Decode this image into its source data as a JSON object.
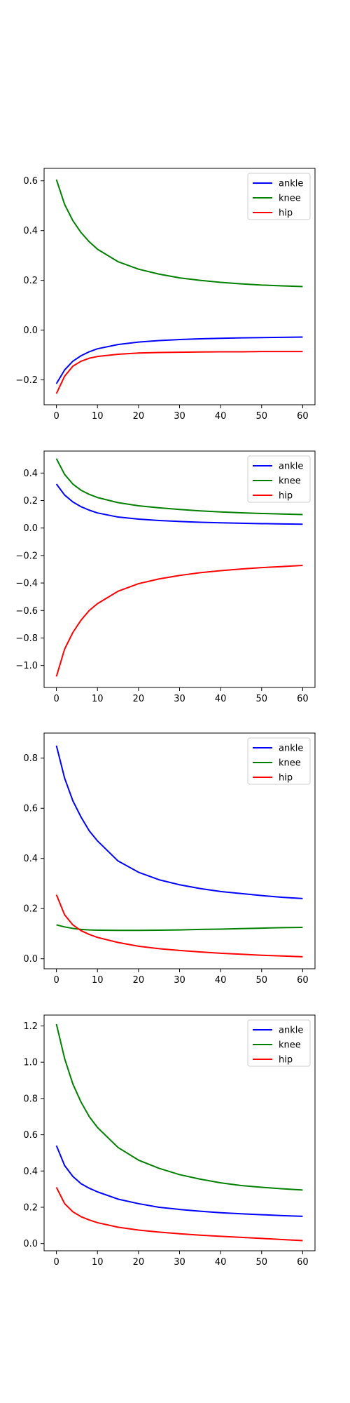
{
  "chart_data": [
    {
      "type": "line",
      "xlim": [
        -3,
        63
      ],
      "ylim": [
        -0.3,
        0.65
      ],
      "xticks": [
        0,
        10,
        20,
        30,
        40,
        50,
        60
      ],
      "yticks": [
        -0.2,
        0.0,
        0.2,
        0.4,
        0.6
      ],
      "xtick_labels": [
        "0",
        "10",
        "20",
        "30",
        "40",
        "50",
        "60"
      ],
      "ytick_labels": [
        "−0.2",
        "0.0",
        "0.2",
        "0.4",
        "0.6"
      ],
      "legend_position": "upper right",
      "grid": false,
      "series": [
        {
          "name": "ankle",
          "color": "#0000ff",
          "x": [
            0,
            2,
            4,
            6,
            8,
            10,
            15,
            20,
            25,
            30,
            35,
            40,
            45,
            50,
            55,
            60
          ],
          "y": [
            -0.215,
            -0.16,
            -0.125,
            -0.103,
            -0.087,
            -0.075,
            -0.058,
            -0.048,
            -0.042,
            -0.038,
            -0.035,
            -0.033,
            -0.031,
            -0.03,
            -0.029,
            -0.028
          ]
        },
        {
          "name": "knee",
          "color": "#008000",
          "x": [
            0,
            2,
            4,
            6,
            8,
            10,
            15,
            20,
            25,
            30,
            35,
            40,
            45,
            50,
            55,
            60
          ],
          "y": [
            0.605,
            0.505,
            0.44,
            0.392,
            0.355,
            0.325,
            0.275,
            0.245,
            0.225,
            0.21,
            0.2,
            0.192,
            0.186,
            0.181,
            0.178,
            0.175
          ]
        },
        {
          "name": "hip",
          "color": "#ff0000",
          "x": [
            0,
            2,
            4,
            6,
            8,
            10,
            15,
            20,
            25,
            30,
            35,
            40,
            45,
            50,
            55,
            60
          ],
          "y": [
            -0.255,
            -0.185,
            -0.145,
            -0.125,
            -0.113,
            -0.106,
            -0.097,
            -0.092,
            -0.09,
            -0.089,
            -0.088,
            -0.087,
            -0.087,
            -0.086,
            -0.086,
            -0.086
          ]
        }
      ]
    },
    {
      "type": "line",
      "xlim": [
        -3,
        63
      ],
      "ylim": [
        -1.16,
        0.56
      ],
      "xticks": [
        0,
        10,
        20,
        30,
        40,
        50,
        60
      ],
      "yticks": [
        -1.0,
        -0.8,
        -0.6,
        -0.4,
        -0.2,
        0.0,
        0.2,
        0.4
      ],
      "xtick_labels": [
        "0",
        "10",
        "20",
        "30",
        "40",
        "50",
        "60"
      ],
      "ytick_labels": [
        "−1.0",
        "−0.8",
        "−0.6",
        "−0.4",
        "−0.2",
        "0.0",
        "0.2",
        "0.4"
      ],
      "legend_position": "upper right",
      "grid": false,
      "series": [
        {
          "name": "ankle",
          "color": "#0000ff",
          "x": [
            0,
            2,
            4,
            6,
            8,
            10,
            15,
            20,
            25,
            30,
            35,
            40,
            45,
            50,
            55,
            60
          ],
          "y": [
            0.32,
            0.24,
            0.19,
            0.155,
            0.13,
            0.11,
            0.08,
            0.065,
            0.055,
            0.048,
            0.042,
            0.038,
            0.035,
            0.032,
            0.03,
            0.028
          ]
        },
        {
          "name": "knee",
          "color": "#008000",
          "x": [
            0,
            2,
            4,
            6,
            8,
            10,
            15,
            20,
            25,
            30,
            35,
            40,
            45,
            50,
            55,
            60
          ],
          "y": [
            0.505,
            0.39,
            0.32,
            0.275,
            0.245,
            0.222,
            0.185,
            0.162,
            0.147,
            0.135,
            0.125,
            0.117,
            0.111,
            0.106,
            0.102,
            0.098
          ]
        },
        {
          "name": "hip",
          "color": "#ff0000",
          "x": [
            0,
            2,
            4,
            6,
            8,
            10,
            15,
            20,
            25,
            30,
            35,
            40,
            45,
            50,
            55,
            60
          ],
          "y": [
            -1.08,
            -0.88,
            -0.76,
            -0.67,
            -0.6,
            -0.55,
            -0.46,
            -0.405,
            -0.37,
            -0.345,
            -0.325,
            -0.31,
            -0.298,
            -0.288,
            -0.28,
            -0.272
          ]
        }
      ]
    },
    {
      "type": "line",
      "xlim": [
        -3,
        63
      ],
      "ylim": [
        -0.04,
        0.9
      ],
      "xticks": [
        0,
        10,
        20,
        30,
        40,
        50,
        60
      ],
      "yticks": [
        0.0,
        0.2,
        0.4,
        0.6,
        0.8
      ],
      "xtick_labels": [
        "0",
        "10",
        "20",
        "30",
        "40",
        "50",
        "60"
      ],
      "ytick_labels": [
        "0.0",
        "0.2",
        "0.4",
        "0.6",
        "0.8"
      ],
      "legend_position": "upper right",
      "grid": false,
      "series": [
        {
          "name": "ankle",
          "color": "#0000ff",
          "x": [
            0,
            2,
            4,
            6,
            8,
            10,
            15,
            20,
            25,
            30,
            35,
            40,
            45,
            50,
            55,
            60
          ],
          "y": [
            0.85,
            0.72,
            0.63,
            0.565,
            0.51,
            0.47,
            0.39,
            0.345,
            0.315,
            0.295,
            0.28,
            0.268,
            0.26,
            0.252,
            0.245,
            0.24
          ]
        },
        {
          "name": "knee",
          "color": "#008000",
          "x": [
            0,
            2,
            4,
            6,
            8,
            10,
            15,
            20,
            25,
            30,
            35,
            40,
            45,
            50,
            55,
            60
          ],
          "y": [
            0.135,
            0.127,
            0.121,
            0.117,
            0.115,
            0.114,
            0.113,
            0.113,
            0.114,
            0.115,
            0.117,
            0.118,
            0.12,
            0.122,
            0.124,
            0.125
          ]
        },
        {
          "name": "hip",
          "color": "#ff0000",
          "x": [
            0,
            2,
            4,
            6,
            8,
            10,
            15,
            20,
            25,
            30,
            35,
            40,
            45,
            50,
            55,
            60
          ],
          "y": [
            0.255,
            0.175,
            0.135,
            0.112,
            0.097,
            0.085,
            0.065,
            0.05,
            0.04,
            0.033,
            0.027,
            0.022,
            0.018,
            0.014,
            0.011,
            0.008
          ]
        }
      ]
    },
    {
      "type": "line",
      "xlim": [
        -3,
        63
      ],
      "ylim": [
        -0.04,
        1.26
      ],
      "xticks": [
        0,
        10,
        20,
        30,
        40,
        50,
        60
      ],
      "yticks": [
        0.0,
        0.2,
        0.4,
        0.6,
        0.8,
        1.0,
        1.2
      ],
      "xtick_labels": [
        "0",
        "10",
        "20",
        "30",
        "40",
        "50",
        "60"
      ],
      "ytick_labels": [
        "0.0",
        "0.2",
        "0.4",
        "0.6",
        "0.8",
        "1.0",
        "1.2"
      ],
      "legend_position": "upper right",
      "grid": false,
      "series": [
        {
          "name": "ankle",
          "color": "#0000ff",
          "x": [
            0,
            2,
            4,
            6,
            8,
            10,
            15,
            20,
            25,
            30,
            35,
            40,
            45,
            50,
            55,
            60
          ],
          "y": [
            0.54,
            0.43,
            0.37,
            0.33,
            0.305,
            0.285,
            0.245,
            0.22,
            0.2,
            0.188,
            0.178,
            0.17,
            0.164,
            0.159,
            0.154,
            0.15
          ]
        },
        {
          "name": "knee",
          "color": "#008000",
          "x": [
            0,
            2,
            4,
            6,
            8,
            10,
            15,
            20,
            25,
            30,
            35,
            40,
            45,
            50,
            55,
            60
          ],
          "y": [
            1.21,
            1.02,
            0.88,
            0.78,
            0.7,
            0.64,
            0.53,
            0.46,
            0.415,
            0.38,
            0.355,
            0.335,
            0.32,
            0.31,
            0.302,
            0.295
          ]
        },
        {
          "name": "hip",
          "color": "#ff0000",
          "x": [
            0,
            2,
            4,
            6,
            8,
            10,
            15,
            20,
            25,
            30,
            35,
            40,
            45,
            50,
            55,
            60
          ],
          "y": [
            0.31,
            0.22,
            0.175,
            0.148,
            0.13,
            0.115,
            0.09,
            0.074,
            0.063,
            0.054,
            0.046,
            0.04,
            0.034,
            0.028,
            0.022,
            0.016
          ]
        }
      ]
    }
  ]
}
